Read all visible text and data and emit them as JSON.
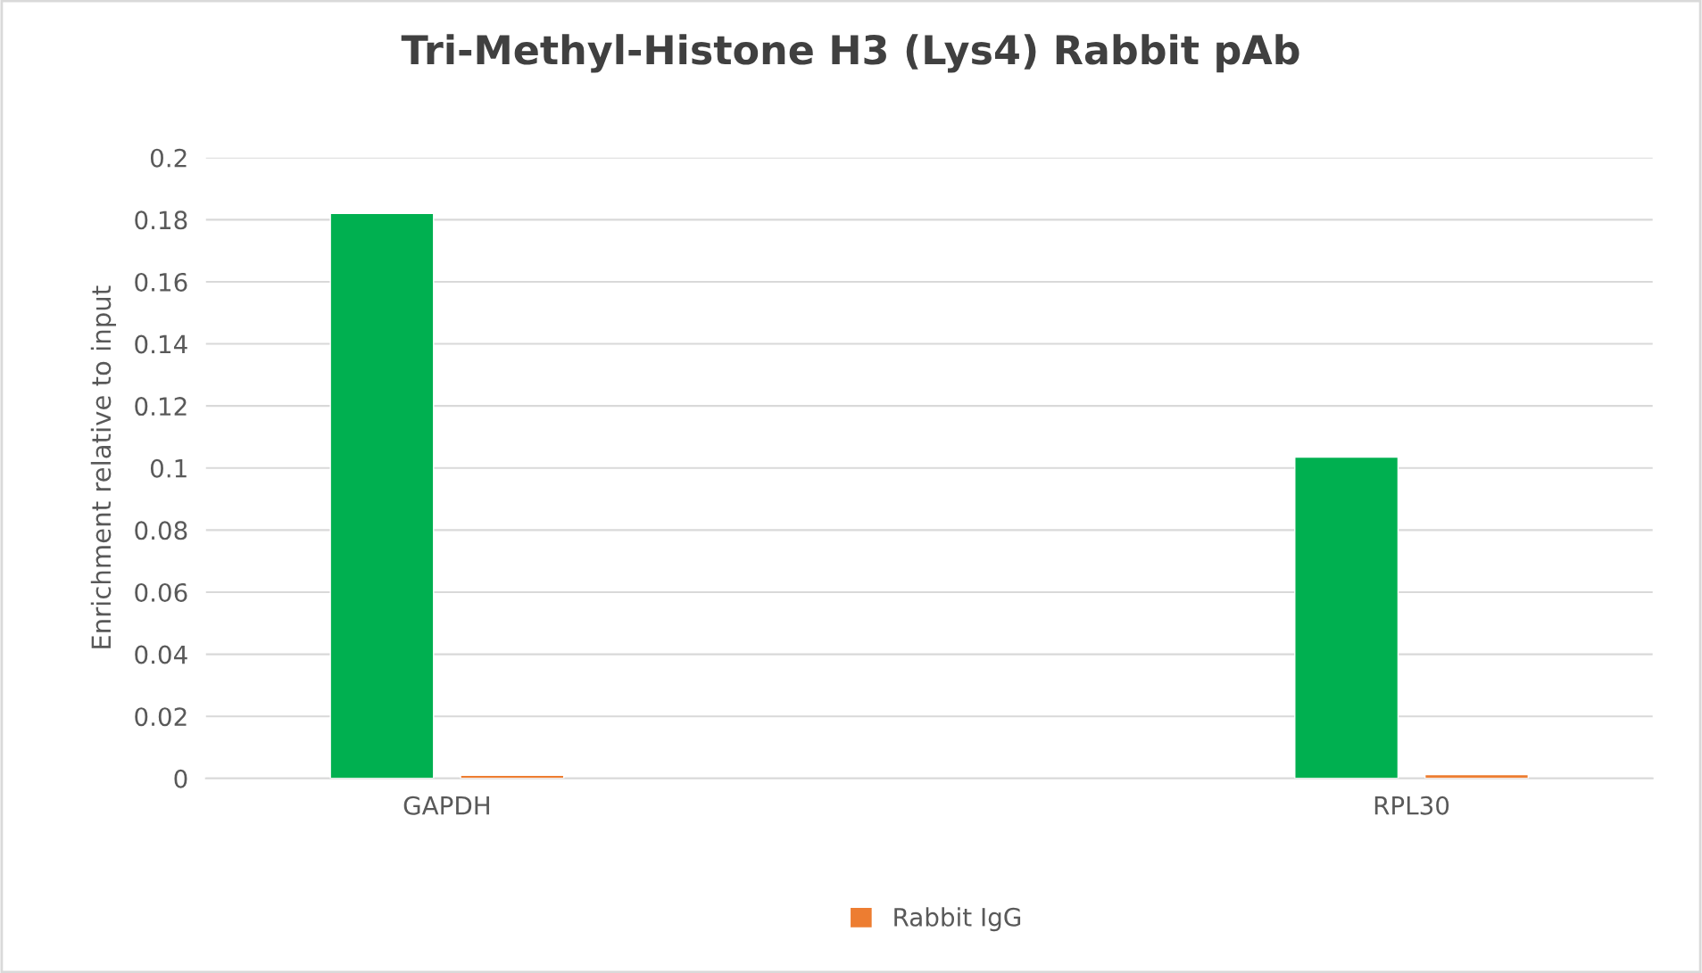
{
  "chart_data": {
    "type": "bar",
    "title": "Tri-Methyl-Histone H3 (Lys4) Rabbit pAb",
    "ylabel": "Enrichment relative to input",
    "categories": [
      "GAPDH",
      "RPL30"
    ],
    "series": [
      {
        "color": "#00b050",
        "values": [
          0.182,
          0.1035
        ]
      },
      {
        "name": "Rabbit IgG",
        "color": "#ed7d31",
        "values": [
          0.001,
          0.0012
        ]
      }
    ],
    "ylim": [
      0,
      0.2
    ],
    "yticks": [
      0,
      0.02,
      0.04,
      0.06,
      0.08,
      0.1,
      0.12,
      0.14,
      0.16,
      0.18,
      0.2
    ],
    "grid": "y",
    "legend": "bottom"
  }
}
